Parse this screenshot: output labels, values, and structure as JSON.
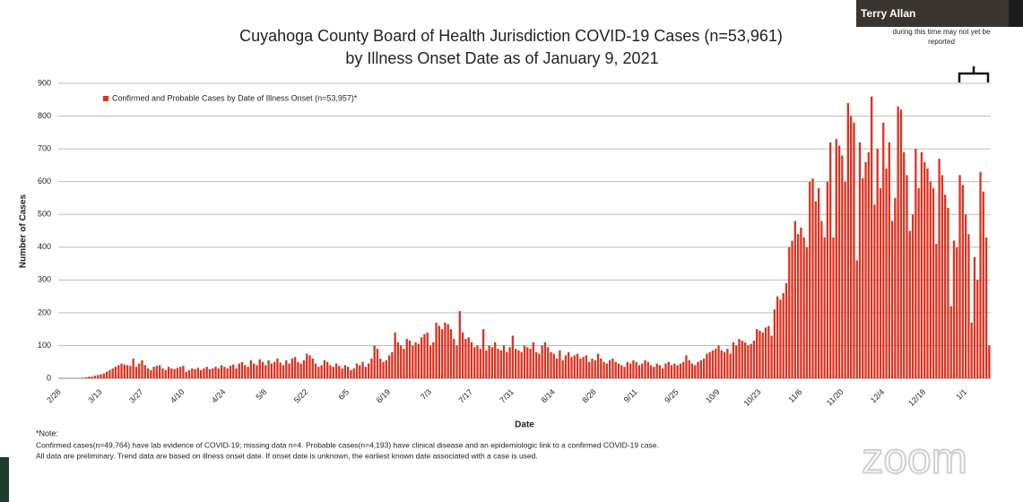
{
  "chart_data": {
    "type": "bar",
    "title": "Cuyahoga County Board of Health Jurisdiction COVID-19 Cases (n=53,961)",
    "subtitle": "by Illness Onset Date as of January 9, 2021",
    "y_label": "Number of Cases",
    "x_label": "Date",
    "annotation": "during this time may not yet be reported",
    "notes": [
      "*Note:",
      "Confirmed cases(n=49,764) have lab evidence of COVID-19; missing data n=4. Probable cases(n=4,193) have clinical disease and an epidemiologic link to a confirmed COVID-19 case.",
      "All data are preliminary. Trend data are based on illness onset date. If onset date is unknown, the earliest known date associated with a case is used."
    ],
    "ylim": [
      0,
      900
    ],
    "yticks": [
      0,
      100,
      200,
      300,
      400,
      500,
      600,
      700,
      800,
      900
    ],
    "grid": true,
    "legend": "top-left",
    "categories": [
      "2/28",
      null,
      null,
      null,
      null,
      null,
      null,
      null,
      null,
      null,
      null,
      null,
      null,
      null,
      "3/13",
      null,
      null,
      null,
      null,
      null,
      null,
      null,
      null,
      null,
      null,
      null,
      null,
      null,
      "3/27",
      null,
      null,
      null,
      null,
      null,
      null,
      null,
      null,
      null,
      null,
      null,
      null,
      null,
      "4/10",
      null,
      null,
      null,
      null,
      null,
      null,
      null,
      null,
      null,
      null,
      null,
      null,
      null,
      "4/24",
      null,
      null,
      null,
      null,
      null,
      null,
      null,
      null,
      null,
      null,
      null,
      null,
      null,
      "5/8",
      null,
      null,
      null,
      null,
      null,
      null,
      null,
      null,
      null,
      null,
      null,
      null,
      null,
      "5/22",
      null,
      null,
      null,
      null,
      null,
      null,
      null,
      null,
      null,
      null,
      null,
      null,
      null,
      "6/5",
      null,
      null,
      null,
      null,
      null,
      null,
      null,
      null,
      null,
      null,
      null,
      null,
      null,
      "6/19",
      null,
      null,
      null,
      null,
      null,
      null,
      null,
      null,
      null,
      null,
      null,
      null,
      null,
      "7/3",
      null,
      null,
      null,
      null,
      null,
      null,
      null,
      null,
      null,
      null,
      null,
      null,
      null,
      "7/17",
      null,
      null,
      null,
      null,
      null,
      null,
      null,
      null,
      null,
      null,
      null,
      null,
      null,
      "7/31",
      null,
      null,
      null,
      null,
      null,
      null,
      null,
      null,
      null,
      null,
      null,
      null,
      null,
      "8/14",
      null,
      null,
      null,
      null,
      null,
      null,
      null,
      null,
      null,
      null,
      null,
      null,
      null,
      "8/28",
      null,
      null,
      null,
      null,
      null,
      null,
      null,
      null,
      null,
      null,
      null,
      null,
      null,
      "9/11",
      null,
      null,
      null,
      null,
      null,
      null,
      null,
      null,
      null,
      null,
      null,
      null,
      null,
      "9/25",
      null,
      null,
      null,
      null,
      null,
      null,
      null,
      null,
      null,
      null,
      null,
      null,
      null,
      "10/9",
      null,
      null,
      null,
      null,
      null,
      null,
      null,
      null,
      null,
      null,
      null,
      null,
      null,
      "10/23",
      null,
      null,
      null,
      null,
      null,
      null,
      null,
      null,
      null,
      null,
      null,
      null,
      null,
      "11/6",
      null,
      null,
      null,
      null,
      null,
      null,
      null,
      null,
      null,
      null,
      null,
      null,
      null,
      "11/20",
      null,
      null,
      null,
      null,
      null,
      null,
      null,
      null,
      null,
      null,
      null,
      null,
      null,
      "12/4",
      null,
      null,
      null,
      null,
      null,
      null,
      null,
      null,
      null,
      null,
      null,
      null,
      null,
      "12/18",
      null,
      null,
      null,
      null,
      null,
      null,
      null,
      null,
      null,
      null,
      null,
      null,
      null,
      "1/1",
      null,
      null,
      null,
      null,
      null,
      null,
      null,
      null
    ],
    "series": [
      {
        "name": "Confirmed and Probable Cases by Date of Illness Onset (n=53,957)*",
        "color": "#e0301e",
        "values": [
          0,
          0,
          0,
          0,
          0,
          0,
          0,
          0,
          2,
          3,
          5,
          5,
          8,
          10,
          12,
          15,
          20,
          25,
          30,
          35,
          40,
          45,
          42,
          40,
          38,
          60,
          35,
          45,
          55,
          40,
          30,
          25,
          35,
          38,
          40,
          30,
          25,
          35,
          30,
          28,
          32,
          35,
          38,
          20,
          25,
          30,
          28,
          32,
          25,
          30,
          35,
          28,
          30,
          35,
          30,
          40,
          35,
          30,
          38,
          42,
          30,
          45,
          50,
          40,
          35,
          55,
          45,
          40,
          58,
          50,
          40,
          55,
          45,
          50,
          60,
          48,
          40,
          55,
          45,
          60,
          65,
          50,
          45,
          55,
          75,
          70,
          60,
          45,
          35,
          40,
          55,
          50,
          40,
          35,
          45,
          38,
          30,
          40,
          35,
          25,
          30,
          45,
          40,
          50,
          35,
          45,
          60,
          100,
          90,
          60,
          50,
          55,
          70,
          80,
          140,
          110,
          100,
          90,
          120,
          115,
          100,
          110,
          105,
          125,
          135,
          140,
          100,
          110,
          170,
          160,
          150,
          170,
          165,
          150,
          120,
          100,
          205,
          140,
          120,
          125,
          110,
          95,
          100,
          90,
          150,
          85,
          100,
          95,
          110,
          90,
          85,
          100,
          80,
          95,
          130,
          90,
          85,
          80,
          100,
          95,
          90,
          110,
          80,
          75,
          100,
          110,
          95,
          80,
          75,
          60,
          85,
          55,
          70,
          80,
          65,
          70,
          75,
          60,
          65,
          70,
          50,
          60,
          55,
          75,
          60,
          50,
          45,
          55,
          60,
          50,
          45,
          40,
          35,
          50,
          45,
          55,
          50,
          40,
          45,
          55,
          50,
          40,
          35,
          45,
          40,
          30,
          45,
          50,
          40,
          45,
          40,
          45,
          50,
          70,
          55,
          45,
          40,
          50,
          55,
          60,
          75,
          80,
          85,
          90,
          100,
          85,
          80,
          90,
          75,
          110,
          100,
          120,
          115,
          110,
          100,
          105,
          115,
          150,
          145,
          140,
          155,
          160,
          130,
          210,
          250,
          240,
          260,
          290,
          400,
          420,
          480,
          440,
          460,
          430,
          400,
          600,
          610,
          540,
          580,
          480,
          430,
          600,
          720,
          430,
          730,
          710,
          680,
          600,
          840,
          800,
          780,
          360,
          720,
          610,
          660,
          690,
          860,
          530,
          700,
          580,
          780,
          640,
          720,
          480,
          550,
          830,
          820,
          690,
          620,
          450,
          500,
          700,
          580,
          690,
          660,
          640,
          600,
          580,
          410,
          670,
          620,
          560,
          520,
          220,
          420,
          400,
          620,
          590,
          500,
          440,
          170,
          370,
          300,
          630,
          570,
          430,
          100
        ]
      }
    ]
  },
  "video_tile": {
    "name": "Terry Allan"
  },
  "watermark": "zoom"
}
